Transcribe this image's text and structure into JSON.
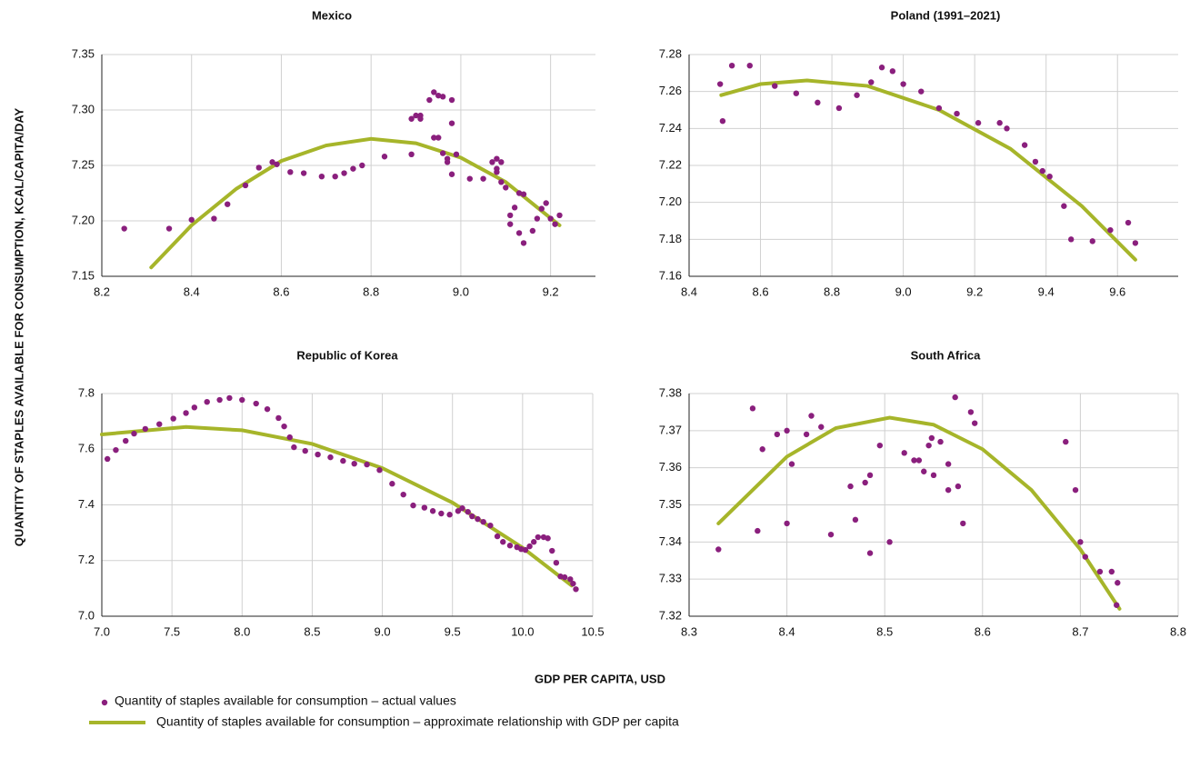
{
  "chart_data": [
    {
      "type": "scatter",
      "title": "Mexico",
      "xlim": [
        8.2,
        9.3
      ],
      "ylim": [
        7.15,
        7.35
      ],
      "xticks": [
        8.2,
        8.4,
        8.6,
        8.8,
        {
          "value": 9,
          "label": "9.0"
        },
        9.2
      ],
      "yticks": [
        7.15,
        {
          "value": 7.2,
          "label": "7.20"
        },
        7.25,
        {
          "value": 7.3,
          "label": "7.30"
        },
        7.35
      ],
      "grid": true,
      "series": [
        {
          "name": "Quantity of staples available for consumption – actual values",
          "type": "scatter",
          "color": "#8a1f7d",
          "x": [
            8.25,
            8.35,
            8.4,
            8.45,
            8.48,
            8.52,
            8.55,
            8.58,
            8.59,
            8.62,
            8.65,
            8.69,
            8.72,
            8.74,
            8.76,
            8.78,
            8.83,
            8.89,
            8.89,
            8.9,
            8.91,
            8.91,
            8.93,
            8.94,
            8.95,
            8.94,
            8.95,
            8.96,
            8.98,
            8.98,
            8.96,
            8.97,
            8.97,
            8.98,
            8.99,
            9.02,
            9.05,
            9.07,
            9.08,
            9.08,
            9.08,
            9.09,
            9.09,
            9.1,
            9.11,
            9.11,
            9.12,
            9.13,
            9.14,
            9.13,
            9.14,
            9.16,
            9.17,
            9.18,
            9.19,
            9.2,
            9.21,
            9.22
          ],
          "values": [
            7.193,
            7.193,
            7.201,
            7.202,
            7.215,
            7.232,
            7.248,
            7.253,
            7.251,
            7.244,
            7.243,
            7.24,
            7.24,
            7.243,
            7.247,
            7.25,
            7.258,
            7.26,
            7.292,
            7.295,
            7.295,
            7.292,
            7.309,
            7.316,
            7.313,
            7.275,
            7.275,
            7.312,
            7.309,
            7.288,
            7.261,
            7.256,
            7.253,
            7.242,
            7.26,
            7.238,
            7.238,
            7.253,
            7.247,
            7.244,
            7.256,
            7.253,
            7.235,
            7.23,
            7.205,
            7.197,
            7.212,
            7.225,
            7.224,
            7.189,
            7.18,
            7.191,
            7.202,
            7.211,
            7.216,
            7.202,
            7.197,
            7.205
          ]
        },
        {
          "name": "Quantity of staples available for consumption – approximate relationship with GDP per capita",
          "type": "line",
          "color": "#a6b52a",
          "x": [
            8.31,
            8.4,
            8.5,
            8.6,
            8.7,
            8.8,
            8.9,
            9.0,
            9.1,
            9.22
          ],
          "values": [
            7.158,
            7.196,
            7.229,
            7.254,
            7.268,
            7.274,
            7.27,
            7.257,
            7.235,
            7.196
          ]
        }
      ]
    },
    {
      "type": "scatter",
      "title": "Poland (1991–2021)",
      "xlim": [
        8.4,
        9.77
      ],
      "ylim": [
        7.16,
        7.28
      ],
      "xticks": [
        8.4,
        8.6,
        8.8,
        {
          "value": 9,
          "label": "9.0"
        },
        9.2,
        9.4,
        9.6
      ],
      "yticks": [
        7.16,
        7.18,
        {
          "value": 7.2,
          "label": "7.20"
        },
        7.22,
        7.24,
        7.26,
        7.28
      ],
      "grid": true,
      "series": [
        {
          "type": "scatter",
          "color": "#8a1f7d",
          "x": [
            8.487,
            8.494,
            8.52,
            8.57,
            8.64,
            8.7,
            8.76,
            8.82,
            8.87,
            8.91,
            8.94,
            8.97,
            9.0,
            9.05,
            9.1,
            9.15,
            9.21,
            9.27,
            9.29,
            9.34,
            9.37,
            9.39,
            9.41,
            9.45,
            9.47,
            9.53,
            9.58,
            9.63,
            9.65
          ],
          "values": [
            7.264,
            7.244,
            7.274,
            7.274,
            7.263,
            7.259,
            7.254,
            7.251,
            7.258,
            7.265,
            7.273,
            7.271,
            7.264,
            7.26,
            7.251,
            7.248,
            7.243,
            7.243,
            7.24,
            7.231,
            7.222,
            7.217,
            7.214,
            7.198,
            7.18,
            7.179,
            7.185,
            7.189,
            7.178
          ]
        },
        {
          "type": "line",
          "color": "#a6b52a",
          "x": [
            8.49,
            8.6,
            8.73,
            8.9,
            9.1,
            9.3,
            9.5,
            9.65
          ],
          "values": [
            7.258,
            7.264,
            7.266,
            7.263,
            7.25,
            7.229,
            7.198,
            7.169
          ]
        }
      ]
    },
    {
      "type": "scatter",
      "title": "Republic of Korea",
      "xlim": [
        7,
        10.5
      ],
      "ylim": [
        7,
        7.8
      ],
      "xticks": [
        {
          "value": 7,
          "label": "7.0"
        },
        7.5,
        {
          "value": 8,
          "label": "8.0"
        },
        8.5,
        {
          "value": 9,
          "label": "9.0"
        },
        9.5,
        {
          "value": 10,
          "label": "10.0"
        },
        10.5
      ],
      "yticks": [
        {
          "value": 7,
          "label": "7.0"
        },
        7.2,
        7.4,
        7.6,
        7.8
      ],
      "grid": true,
      "series": [
        {
          "type": "scatter",
          "color": "#8a1f7d",
          "x": [
            7.04,
            7.1,
            7.17,
            7.23,
            7.31,
            7.41,
            7.51,
            7.6,
            7.66,
            7.75,
            7.84,
            7.91,
            8.0,
            8.1,
            8.18,
            8.26,
            8.3,
            8.34,
            8.37,
            8.45,
            8.54,
            8.63,
            8.72,
            8.8,
            8.89,
            8.98,
            9.07,
            9.15,
            9.22,
            9.3,
            9.36,
            9.42,
            9.48,
            9.54,
            9.57,
            9.61,
            9.64,
            9.68,
            9.72,
            9.77,
            9.82,
            9.86,
            9.91,
            9.96,
            9.99,
            10.02,
            10.05,
            10.08,
            10.11,
            10.15,
            10.18,
            10.21,
            10.24,
            10.27,
            10.3,
            10.34,
            10.36,
            10.38
          ],
          "values": [
            7.565,
            7.597,
            7.63,
            7.656,
            7.673,
            7.69,
            7.71,
            7.73,
            7.75,
            7.77,
            7.777,
            7.784,
            7.777,
            7.764,
            7.744,
            7.712,
            7.682,
            7.643,
            7.607,
            7.594,
            7.581,
            7.571,
            7.558,
            7.548,
            7.545,
            7.525,
            7.476,
            7.437,
            7.398,
            7.39,
            7.378,
            7.369,
            7.365,
            7.378,
            7.388,
            7.375,
            7.359,
            7.349,
            7.339,
            7.326,
            7.287,
            7.267,
            7.254,
            7.248,
            7.241,
            7.238,
            7.251,
            7.267,
            7.284,
            7.284,
            7.28,
            7.235,
            7.192,
            7.143,
            7.14,
            7.133,
            7.117,
            7.097
          ]
        },
        {
          "type": "line",
          "color": "#a6b52a",
          "x": [
            7.0,
            7.6,
            8.0,
            8.5,
            9.0,
            9.5,
            10.0,
            10.35
          ],
          "values": [
            7.653,
            7.68,
            7.668,
            7.619,
            7.532,
            7.408,
            7.246,
            7.11
          ]
        }
      ]
    },
    {
      "type": "scatter",
      "title": "South Africa",
      "xlim": [
        8.3,
        8.8
      ],
      "ylim": [
        7.32,
        7.38
      ],
      "xticks": [
        8.3,
        8.4,
        8.5,
        8.6,
        8.7,
        8.8
      ],
      "yticks": [
        7.32,
        7.33,
        7.34,
        7.35,
        7.36,
        7.37,
        7.38
      ],
      "grid": true,
      "series": [
        {
          "type": "scatter",
          "color": "#8a1f7d",
          "x": [
            8.33,
            8.365,
            8.37,
            8.375,
            8.39,
            8.4,
            8.405,
            8.4,
            8.42,
            8.425,
            8.435,
            8.445,
            8.465,
            8.47,
            8.48,
            8.485,
            8.485,
            8.495,
            8.505,
            8.52,
            8.53,
            8.535,
            8.54,
            8.545,
            8.548,
            8.55,
            8.557,
            8.565,
            8.565,
            8.572,
            8.575,
            8.58,
            8.588,
            8.592,
            8.685,
            8.695,
            8.7,
            8.705,
            8.72,
            8.732,
            8.738,
            8.737
          ],
          "values": [
            7.338,
            7.376,
            7.343,
            7.365,
            7.369,
            7.37,
            7.361,
            7.345,
            7.369,
            7.374,
            7.371,
            7.342,
            7.355,
            7.346,
            7.356,
            7.358,
            7.337,
            7.366,
            7.34,
            7.364,
            7.362,
            7.362,
            7.359,
            7.366,
            7.368,
            7.358,
            7.367,
            7.361,
            7.354,
            7.379,
            7.355,
            7.345,
            7.375,
            7.372,
            7.367,
            7.354,
            7.34,
            7.336,
            7.332,
            7.332,
            7.329,
            7.323
          ]
        },
        {
          "type": "line",
          "color": "#a6b52a",
          "x": [
            8.33,
            8.4,
            8.45,
            8.505,
            8.55,
            8.6,
            8.65,
            8.7,
            8.74
          ],
          "values": [
            7.345,
            7.363,
            7.3707,
            7.3735,
            7.3716,
            7.365,
            7.354,
            7.338,
            7.322
          ]
        }
      ]
    }
  ],
  "x_label": "GDP PER CAPITA, USD",
  "y_label": "QUANTITY OF STAPLES AVAILABLE FOR CONSUMPTION, KCAL/CAPITA/DAY"
}
